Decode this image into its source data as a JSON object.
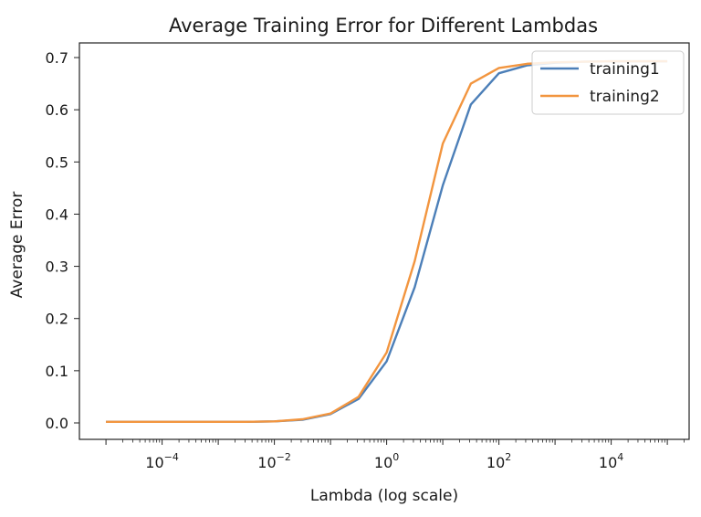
{
  "chart_data": {
    "type": "line",
    "title": "Average Training Error for Different Lambdas",
    "xlabel": "Lambda (log scale)",
    "ylabel": "Average Error",
    "xscale": "log",
    "x_tick_exponents": [
      -4,
      -2,
      0,
      2,
      4
    ],
    "y_ticks": [
      "0.0",
      "0.1",
      "0.2",
      "0.3",
      "0.4",
      "0.5",
      "0.6",
      "0.7"
    ],
    "legend_position": "top-right",
    "grid": false,
    "x": [
      1e-05,
      3.16e-05,
      0.0001,
      0.000316,
      0.001,
      0.00316,
      0.01,
      0.0316,
      0.1,
      0.316,
      1,
      3.16,
      10,
      31.6,
      100,
      316,
      1000,
      3160,
      10000,
      31600,
      100000
    ],
    "series": [
      {
        "name": "training1",
        "color": "#4c7fb8",
        "values": [
          0.002,
          0.002,
          0.002,
          0.002,
          0.002,
          0.002,
          0.003,
          0.006,
          0.017,
          0.046,
          0.118,
          0.26,
          0.455,
          0.61,
          0.67,
          0.685,
          0.69,
          0.692,
          0.693,
          0.693,
          0.693
        ]
      },
      {
        "name": "training2",
        "color": "#f2953f",
        "values": [
          0.002,
          0.002,
          0.002,
          0.002,
          0.002,
          0.002,
          0.003,
          0.007,
          0.018,
          0.05,
          0.135,
          0.31,
          0.535,
          0.65,
          0.68,
          0.688,
          0.691,
          0.692,
          0.693,
          0.693,
          0.693
        ]
      }
    ]
  }
}
